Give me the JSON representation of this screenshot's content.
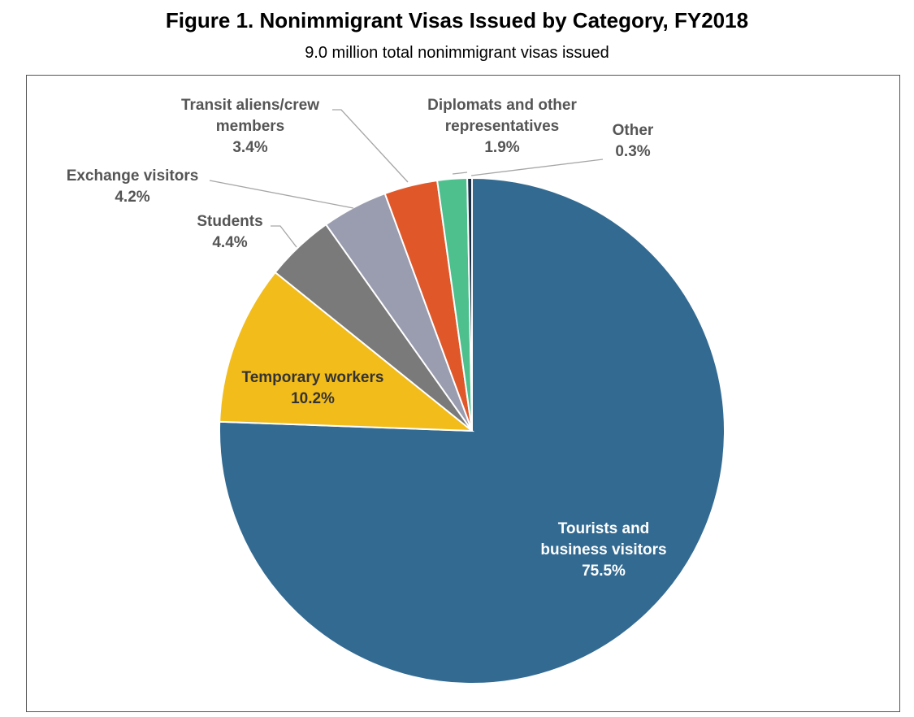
{
  "chart_data": {
    "type": "pie",
    "title": "Figure 1. Nonimmigrant Visas Issued by Category, FY2018",
    "subtitle": "9.0 million total nonimmigrant visas issued",
    "slices": [
      {
        "label": "Tourists and business visitors",
        "label_lines": [
          "Tourists and",
          "business visitors"
        ],
        "value": 75.5,
        "display": "75.5%",
        "color": "#336A91"
      },
      {
        "label": "Temporary workers",
        "label_lines": [
          "Temporary workers"
        ],
        "value": 10.2,
        "display": "10.2%",
        "color": "#F2BC1A"
      },
      {
        "label": "Students",
        "label_lines": [
          "Students"
        ],
        "value": 4.4,
        "display": "4.4%",
        "color": "#7A7A7A"
      },
      {
        "label": "Exchange visitors",
        "label_lines": [
          "Exchange visitors"
        ],
        "value": 4.2,
        "display": "4.2%",
        "color": "#9A9DAF"
      },
      {
        "label": "Transit aliens/crew members",
        "label_lines": [
          "Transit aliens/crew",
          "members"
        ],
        "value": 3.4,
        "display": "3.4%",
        "color": "#E0572A"
      },
      {
        "label": "Diplomats and other representatives",
        "label_lines": [
          "Diplomats and other",
          "representatives"
        ],
        "value": 1.9,
        "display": "1.9%",
        "color": "#4DC08E"
      },
      {
        "label": "Other",
        "label_lines": [
          "Other"
        ],
        "value": 0.3,
        "display": "0.3%",
        "color": "#1B2F45"
      }
    ]
  }
}
